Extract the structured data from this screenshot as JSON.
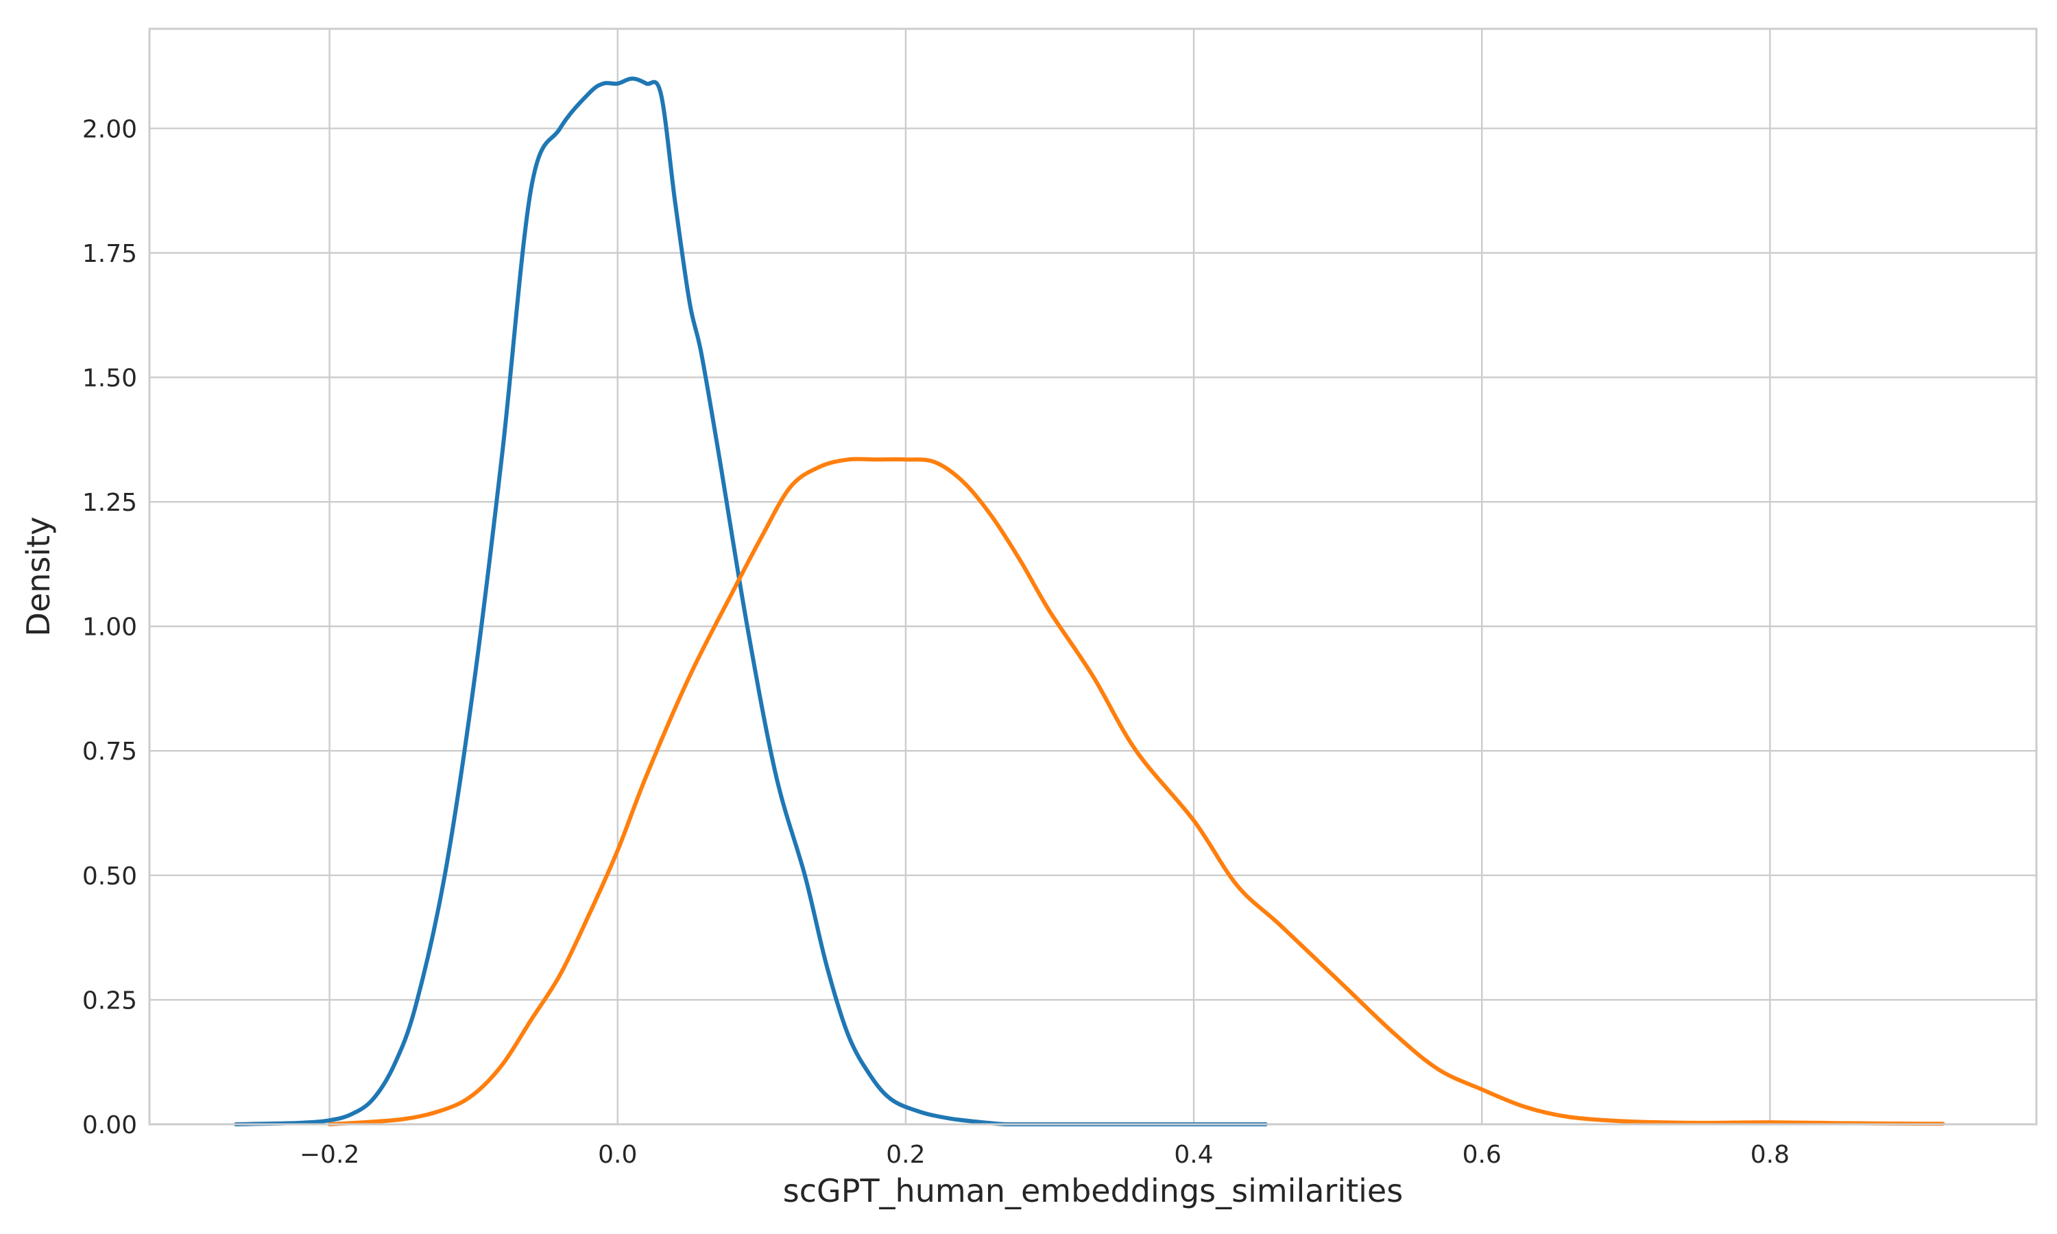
{
  "chart_data": {
    "type": "line",
    "title": "",
    "xlabel": "scGPT_human_embeddings_similarities",
    "ylabel": "Density",
    "xlim": [
      -0.325,
      0.985
    ],
    "ylim": [
      0,
      2.2
    ],
    "grid": true,
    "legend": "none",
    "x_ticks": [
      {
        "value": -0.2,
        "label": "−0.2"
      },
      {
        "value": 0.0,
        "label": "0.0"
      },
      {
        "value": 0.2,
        "label": "0.2"
      },
      {
        "value": 0.4,
        "label": "0.4"
      },
      {
        "value": 0.6,
        "label": "0.6"
      },
      {
        "value": 0.8,
        "label": "0.8"
      }
    ],
    "y_ticks": [
      {
        "value": 0.0,
        "label": "0.00"
      },
      {
        "value": 0.25,
        "label": "0.25"
      },
      {
        "value": 0.5,
        "label": "0.50"
      },
      {
        "value": 0.75,
        "label": "0.75"
      },
      {
        "value": 1.0,
        "label": "1.00"
      },
      {
        "value": 1.25,
        "label": "1.25"
      },
      {
        "value": 1.5,
        "label": "1.50"
      },
      {
        "value": 1.75,
        "label": "1.75"
      },
      {
        "value": 2.0,
        "label": "2.00"
      }
    ],
    "series": [
      {
        "color": "#1f77b4",
        "x": [
          -0.265,
          -0.22,
          -0.2,
          -0.185,
          -0.17,
          -0.155,
          -0.14,
          -0.12,
          -0.1,
          -0.08,
          -0.06,
          -0.04,
          -0.02,
          -0.01,
          0.0,
          0.01,
          0.02,
          0.03,
          0.04,
          0.05,
          0.058,
          0.07,
          0.09,
          0.11,
          0.13,
          0.145,
          0.16,
          0.175,
          0.19,
          0.21,
          0.23,
          0.25,
          0.27,
          0.29,
          0.31,
          0.33,
          0.35,
          0.38,
          0.41,
          0.45
        ],
        "values": [
          0.0,
          0.003,
          0.008,
          0.02,
          0.05,
          0.12,
          0.24,
          0.5,
          0.88,
          1.35,
          1.88,
          2.0,
          2.07,
          2.09,
          2.09,
          2.1,
          2.09,
          2.07,
          1.85,
          1.65,
          1.55,
          1.35,
          1.0,
          0.7,
          0.5,
          0.32,
          0.18,
          0.1,
          0.05,
          0.025,
          0.012,
          0.005,
          0.0,
          0.0,
          0.0,
          0.0,
          0.0,
          0.0,
          0.0,
          0.0
        ]
      },
      {
        "color": "#ff7f0e",
        "x": [
          -0.2,
          -0.15,
          -0.12,
          -0.1,
          -0.08,
          -0.06,
          -0.04,
          -0.02,
          0.0,
          0.02,
          0.05,
          0.08,
          0.1,
          0.12,
          0.14,
          0.16,
          0.18,
          0.2,
          0.22,
          0.24,
          0.26,
          0.28,
          0.3,
          0.33,
          0.36,
          0.4,
          0.43,
          0.46,
          0.5,
          0.54,
          0.57,
          0.6,
          0.63,
          0.66,
          0.7,
          0.75,
          0.8,
          0.86,
          0.92
        ],
        "values": [
          0.0,
          0.01,
          0.03,
          0.06,
          0.12,
          0.21,
          0.3,
          0.42,
          0.55,
          0.7,
          0.9,
          1.07,
          1.18,
          1.28,
          1.32,
          1.335,
          1.335,
          1.335,
          1.33,
          1.29,
          1.22,
          1.13,
          1.03,
          0.9,
          0.75,
          0.61,
          0.48,
          0.4,
          0.29,
          0.18,
          0.11,
          0.07,
          0.035,
          0.015,
          0.006,
          0.003,
          0.004,
          0.002,
          0.001
        ]
      }
    ]
  }
}
